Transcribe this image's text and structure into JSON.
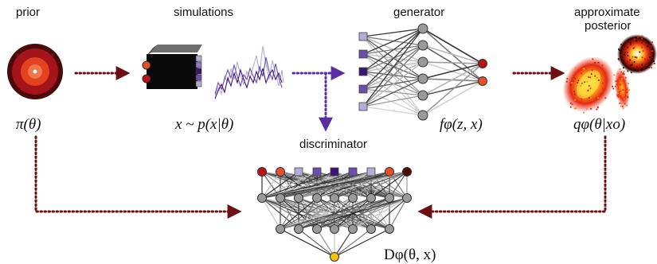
{
  "labels": {
    "prior": "prior",
    "simulations": "simulations",
    "generator": "generator",
    "approx_posterior_line1": "approximate",
    "approx_posterior_line2": "posterior",
    "discriminator": "discriminator"
  },
  "math": {
    "prior": "π(θ)",
    "simulations": "x ~ p(x|θ)",
    "generator": "fφ(z, x)",
    "posterior": "qφ(θ|xo)",
    "discriminator": "Dφ(θ, x)"
  },
  "colors": {
    "dark_red": "#6b0f12",
    "red": "#b8121a",
    "orange": "#e4502a",
    "purple_dark": "#3b1670",
    "purple_mid": "#6a4fa8",
    "purple_light": "#b3acd6",
    "node_gray": "#9a9a9a",
    "yellow": "#f2c30f"
  }
}
